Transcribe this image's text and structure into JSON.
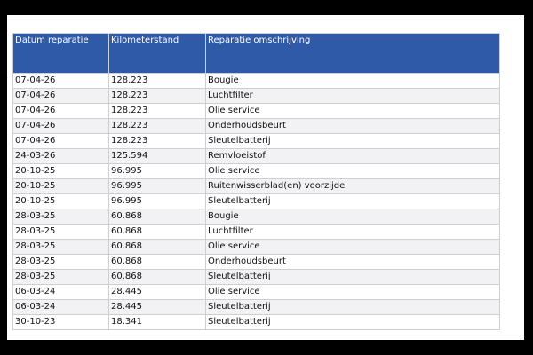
{
  "table": {
    "header": [
      "Datum reparatie",
      "Kilometerstand",
      "Reparatie omschrijving"
    ],
    "rows": [
      [
        "07-04-26",
        "128.223",
        "Bougie"
      ],
      [
        "07-04-26",
        "128.223",
        "Luchtfilter"
      ],
      [
        "07-04-26",
        "128.223",
        "Olie service"
      ],
      [
        "07-04-26",
        "128.223",
        "Onderhoudsbeurt"
      ],
      [
        "07-04-26",
        "128.223",
        "Sleutelbatterij"
      ],
      [
        "24-03-26",
        "125.594",
        "Remvloeistof"
      ],
      [
        "20-10-25",
        "96.995",
        "Olie service"
      ],
      [
        "20-10-25",
        "96.995",
        "Ruitenwisserblad(en) voorzijde"
      ],
      [
        "20-10-25",
        "96.995",
        "Sleutelbatterij"
      ],
      [
        "28-03-25",
        "60.868",
        "Bougie"
      ],
      [
        "28-03-25",
        "60.868",
        "Luchtfilter"
      ],
      [
        "28-03-25",
        "60.868",
        "Olie service"
      ],
      [
        "28-03-25",
        "60.868",
        "Onderhoudsbeurt"
      ],
      [
        "28-03-25",
        "60.868",
        "Sleutelbatterij"
      ],
      [
        "06-03-24",
        "28.445",
        "Olie service"
      ],
      [
        "06-03-24",
        "28.445",
        "Sleutelbatterij"
      ],
      [
        "30-10-23",
        "18.341",
        "Sleutelbatterij"
      ]
    ]
  }
}
